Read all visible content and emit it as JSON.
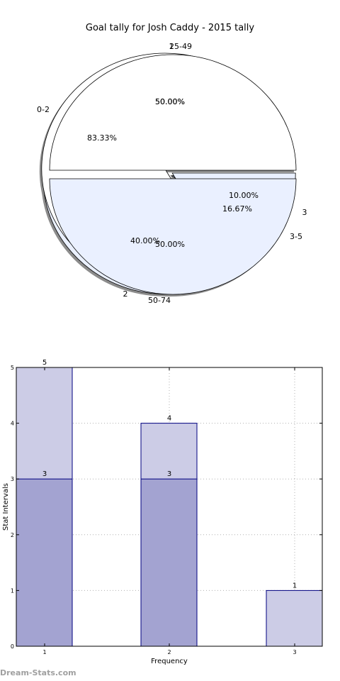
{
  "chart_data": [
    {
      "type": "pie",
      "title": "Goal tally for Josh Caddy - 2015 tally",
      "rings": [
        {
          "name": "",
          "labels": [
            "1",
            "2",
            "3"
          ],
          "values": [
            50.0,
            40.0,
            10.0
          ],
          "pct_labels": [
            "50.00%",
            "40.00%",
            "10.00%"
          ],
          "colors": [
            "#ffffff",
            "#eaf0ff",
            "#c6d9ff"
          ]
        },
        {
          "name": "",
          "labels": [
            "0-2",
            "3-5"
          ],
          "values": [
            83.33,
            16.67
          ],
          "pct_labels": [
            "83.33%",
            "16.67%"
          ],
          "colors": [
            "#ffffff",
            "#eaf0ff"
          ]
        },
        {
          "name": "",
          "labels": [
            "25-49",
            "50-74"
          ],
          "values": [
            50.0,
            50.0
          ],
          "pct_labels": [
            "50.00%",
            "50.00%"
          ],
          "colors": [
            "#ffffff",
            "#eaf0ff"
          ]
        }
      ]
    },
    {
      "type": "bar",
      "title": "",
      "xlabel": "Frequency",
      "ylabel": "Stat Intervals",
      "categories": [
        "1",
        "2",
        "3"
      ],
      "xticks": [
        "1",
        "2",
        "3"
      ],
      "yticks": [
        "0",
        "1",
        "2",
        "3",
        "4",
        "5"
      ],
      "ylim": [
        0,
        5
      ],
      "grid": true,
      "series": [
        {
          "name": "",
          "values": [
            5,
            4,
            1
          ],
          "labels": [
            "5",
            "4",
            "1"
          ],
          "color": "#ccccE6"
        },
        {
          "name": "",
          "values": [
            3,
            3,
            null
          ],
          "labels": [
            "3",
            "3",
            ""
          ],
          "color": "#a3a3d1"
        }
      ]
    }
  ],
  "watermark": "Dream-Stats.com",
  "colors": {
    "edge": "#000080",
    "bar_text": "#00007a",
    "grid": "#b0b0b0"
  }
}
